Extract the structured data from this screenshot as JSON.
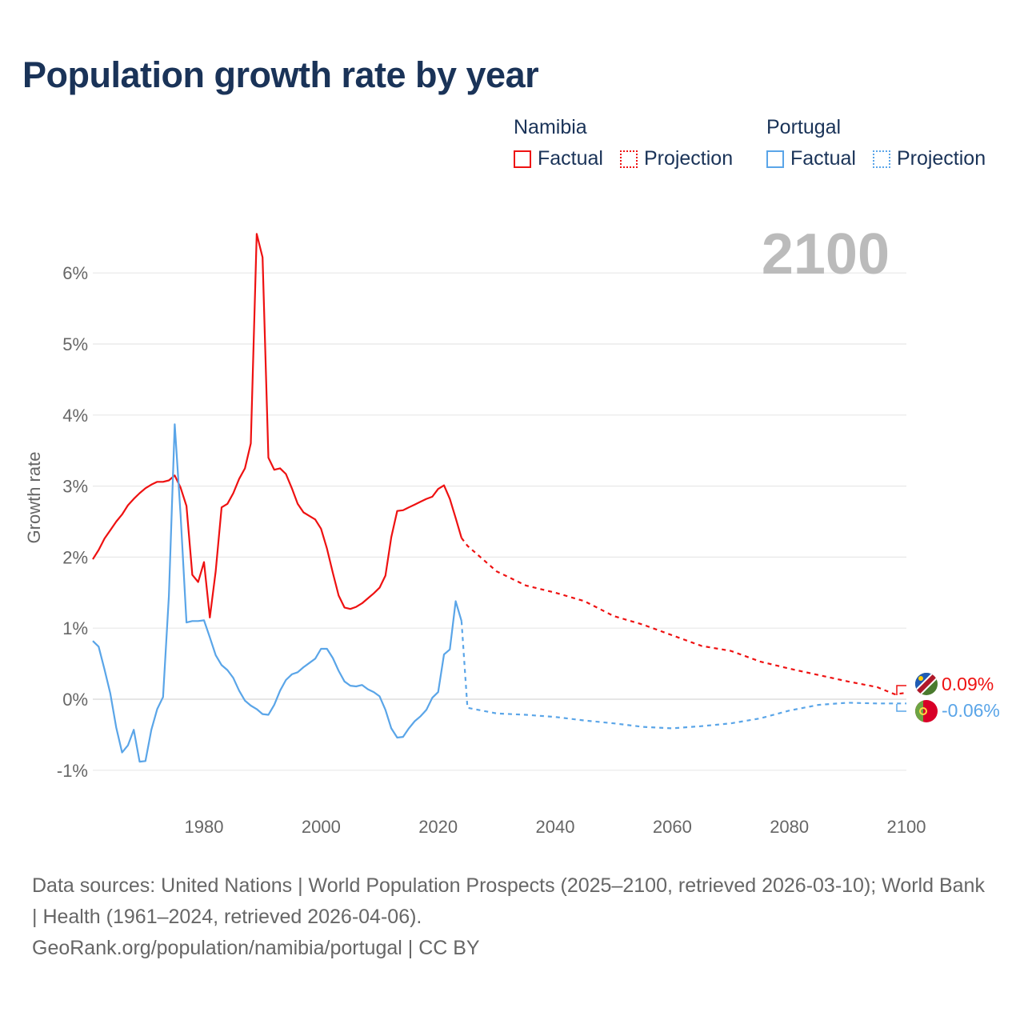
{
  "title": "Population growth rate by year",
  "legend": [
    {
      "group": "Namibia",
      "color": "#ee1111",
      "items": [
        "Factual",
        "Projection"
      ]
    },
    {
      "group": "Portugal",
      "color": "#5aa5e8",
      "items": [
        "Factual",
        "Projection"
      ]
    }
  ],
  "chart_data": {
    "type": "line",
    "title": "Population growth rate by year",
    "ylabel": "Growth rate",
    "xlabel": "",
    "xlim": [
      1961,
      2100
    ],
    "ylim": [
      -1.4,
      6.8
    ],
    "x_ticks": [
      1980,
      2000,
      2020,
      2040,
      2060,
      2080,
      2100
    ],
    "y_ticks": [
      -1,
      0,
      1,
      2,
      3,
      4,
      5,
      6
    ],
    "y_tick_labels": [
      "-1%",
      "0%",
      "1%",
      "2%",
      "3%",
      "4%",
      "5%",
      "6%"
    ],
    "year_overlay": "2100",
    "grid": true,
    "series": [
      {
        "name": "Namibia Factual",
        "color": "#ee1111",
        "style": "solid",
        "x_start": 1961,
        "values": [
          1.97,
          2.1,
          2.26,
          2.38,
          2.5,
          2.6,
          2.73,
          2.82,
          2.9,
          2.97,
          3.02,
          3.06,
          3.06,
          3.08,
          3.15,
          2.98,
          2.72,
          1.75,
          1.65,
          1.93,
          1.15,
          1.8,
          2.7,
          2.75,
          2.9,
          3.1,
          3.25,
          3.6,
          6.55,
          6.22,
          3.4,
          3.23,
          3.25,
          3.17,
          2.97,
          2.75,
          2.63,
          2.58,
          2.53,
          2.4,
          2.12,
          1.78,
          1.46,
          1.29,
          1.27,
          1.3,
          1.35,
          1.42,
          1.49,
          1.57,
          1.74,
          2.28,
          2.65,
          2.66,
          2.7,
          2.74,
          2.78,
          2.82,
          2.85,
          2.96,
          3.01,
          2.82,
          2.55,
          2.27
        ]
      },
      {
        "name": "Namibia Projection",
        "color": "#ee1111",
        "style": "dotted",
        "x": [
          2024,
          2025,
          2030,
          2035,
          2040,
          2045,
          2050,
          2055,
          2060,
          2065,
          2070,
          2075,
          2080,
          2085,
          2090,
          2095,
          2098,
          2100
        ],
        "values": [
          2.27,
          2.16,
          1.8,
          1.6,
          1.5,
          1.38,
          1.17,
          1.05,
          0.9,
          0.75,
          0.68,
          0.53,
          0.43,
          0.34,
          0.25,
          0.17,
          0.07,
          0.09
        ]
      },
      {
        "name": "Portugal Factual",
        "color": "#5aa5e8",
        "style": "solid",
        "x_start": 1961,
        "values": [
          0.82,
          0.74,
          0.42,
          0.08,
          -0.4,
          -0.75,
          -0.65,
          -0.43,
          -0.88,
          -0.87,
          -0.43,
          -0.14,
          0.03,
          1.45,
          3.87,
          2.6,
          1.08,
          1.1,
          1.1,
          1.11,
          0.87,
          0.62,
          0.48,
          0.41,
          0.3,
          0.12,
          -0.02,
          -0.09,
          -0.14,
          -0.21,
          -0.22,
          -0.08,
          0.12,
          0.27,
          0.35,
          0.38,
          0.45,
          0.51,
          0.57,
          0.71,
          0.71,
          0.58,
          0.4,
          0.25,
          0.19,
          0.18,
          0.2,
          0.14,
          0.1,
          0.04,
          -0.15,
          -0.41,
          -0.54,
          -0.53,
          -0.41,
          -0.31,
          -0.24,
          -0.15,
          0.02,
          0.1,
          0.63,
          0.7,
          1.38,
          1.1
        ]
      },
      {
        "name": "Portugal Projection",
        "color": "#5aa5e8",
        "style": "dotted",
        "x": [
          2024,
          2025,
          2030,
          2035,
          2040,
          2045,
          2050,
          2055,
          2060,
          2065,
          2070,
          2075,
          2080,
          2085,
          2090,
          2095,
          2100
        ],
        "values": [
          1.1,
          -0.12,
          -0.2,
          -0.22,
          -0.25,
          -0.3,
          -0.34,
          -0.39,
          -0.41,
          -0.38,
          -0.34,
          -0.27,
          -0.16,
          -0.08,
          -0.05,
          -0.06,
          -0.06
        ]
      }
    ],
    "end_labels": [
      {
        "country": "Namibia",
        "text": "0.09%",
        "color": "#ee1111"
      },
      {
        "country": "Portugal",
        "text": "-0.06%",
        "color": "#5aa5e8"
      }
    ]
  },
  "footer": {
    "sources": "Data sources: United Nations | World Population Prospects (2025–2100, retrieved 2026-03-10); World Bank | Health (1961–2024, retrieved 2026-04-06).",
    "attribution": "GeoRank.org/population/namibia/portugal | CC BY"
  }
}
